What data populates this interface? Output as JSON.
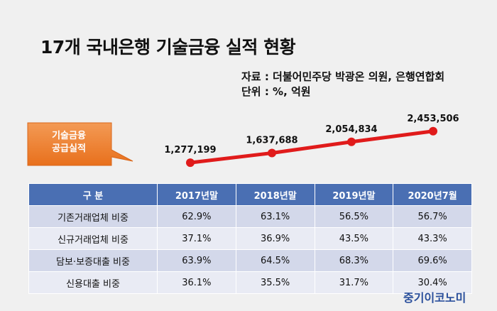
{
  "title": "17개 국내은행 기술금융 실적 현황",
  "source_line": "자료 : 더불어민주당 박광온 의원, 은행연합회",
  "unit_line": "단위 : %, 억원",
  "callout": {
    "line1": "기술금융",
    "line2": "공급실적"
  },
  "colors": {
    "line": "#e01b1b",
    "header": "#4a6fb3",
    "callout": "#ec7a27",
    "logo": "#2a4f9c"
  },
  "chart_data": {
    "type": "line",
    "x": [
      "2017년말",
      "2018년말",
      "2019년말",
      "2020년7월"
    ],
    "series": [
      {
        "values": [
          1277199,
          1637688,
          2054834,
          2453506
        ]
      }
    ],
    "labels": [
      "1,277,199",
      "1,637,688",
      "2,054,834",
      "2,453,506"
    ],
    "grid": false
  },
  "table": {
    "headers": [
      "구 분",
      "2017년말",
      "2018년말",
      "2019년말",
      "2020년7월"
    ],
    "rows": [
      [
        "기존거래업체 비중",
        "62.9%",
        "63.1%",
        "56.5%",
        "56.7%"
      ],
      [
        "신규거래업체 비중",
        "37.1%",
        "36.9%",
        "43.5%",
        "43.3%"
      ],
      [
        "담보·보증대출 비중",
        "63.9%",
        "64.5%",
        "68.3%",
        "69.6%"
      ],
      [
        "신용대출 비중",
        "36.1%",
        "35.5%",
        "31.7%",
        "30.4%"
      ]
    ]
  },
  "logo": "중기이코노미"
}
